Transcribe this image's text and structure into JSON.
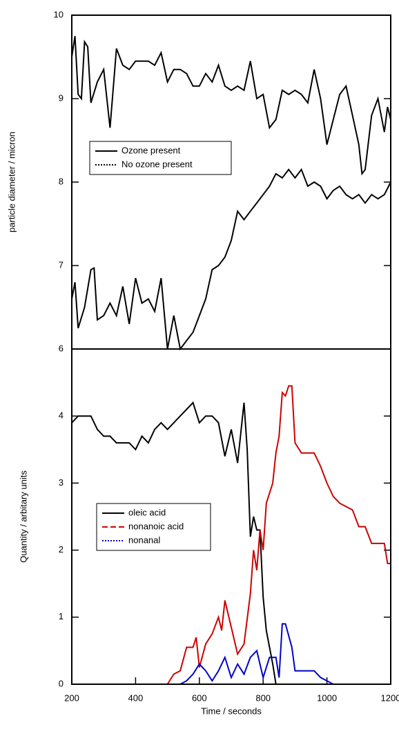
{
  "chart_data": [
    {
      "type": "line",
      "ylabel": "particle diameter / micron",
      "xlim": [
        200,
        1200
      ],
      "ylim": [
        6,
        10
      ],
      "yticks": [
        6,
        7,
        8,
        9,
        10
      ],
      "legend": "upper-left",
      "series": [
        {
          "name": "Ozone present",
          "color": "#000000",
          "legend_dash": "solid",
          "x": [
            200,
            210,
            220,
            230,
            240,
            250,
            260,
            280,
            300,
            320,
            340,
            360,
            380,
            400,
            420,
            440,
            460,
            480,
            500,
            520,
            540,
            560,
            580,
            600,
            620,
            640,
            660,
            680,
            700,
            720,
            740,
            760,
            780,
            800,
            820,
            840,
            860,
            880,
            900,
            920,
            940,
            960,
            980,
            1000,
            1020,
            1040,
            1060,
            1080,
            1100,
            1110,
            1120,
            1140,
            1160,
            1170,
            1180,
            1190,
            1200
          ],
          "values": [
            9.5,
            9.75,
            9.05,
            9.0,
            9.68,
            9.62,
            8.95,
            9.2,
            9.35,
            8.65,
            9.6,
            9.4,
            9.35,
            9.45,
            9.45,
            9.45,
            9.4,
            9.55,
            9.2,
            9.35,
            9.35,
            9.3,
            9.15,
            9.15,
            9.3,
            9.2,
            9.4,
            9.15,
            9.1,
            9.15,
            9.1,
            9.45,
            9.0,
            9.05,
            8.65,
            8.75,
            9.1,
            9.05,
            9.1,
            9.05,
            8.95,
            9.35,
            9.0,
            8.45,
            8.75,
            9.05,
            9.15,
            8.8,
            8.45,
            8.1,
            8.15,
            8.8,
            9.0,
            8.8,
            8.6,
            8.9,
            8.75
          ]
        },
        {
          "name": "No ozone present",
          "color": "#000000",
          "legend_dash": "dotted",
          "x": [
            200,
            210,
            220,
            240,
            260,
            270,
            280,
            300,
            320,
            340,
            360,
            380,
            400,
            420,
            440,
            460,
            480,
            500,
            520,
            540,
            560,
            580,
            600,
            620,
            640,
            660,
            680,
            700,
            720,
            740,
            760,
            780,
            800,
            820,
            840,
            860,
            880,
            900,
            920,
            940,
            960,
            980,
            1000,
            1020,
            1040,
            1060,
            1080,
            1100,
            1120,
            1140,
            1160,
            1180,
            1200
          ],
          "values": [
            6.6,
            6.8,
            6.25,
            6.5,
            6.95,
            6.97,
            6.35,
            6.4,
            6.55,
            6.4,
            6.75,
            6.3,
            6.85,
            6.55,
            6.6,
            6.45,
            6.85,
            6.0,
            6.4,
            6.0,
            6.1,
            6.2,
            6.4,
            6.6,
            6.95,
            7.0,
            7.1,
            7.3,
            7.65,
            7.55,
            7.65,
            7.75,
            7.85,
            7.95,
            8.1,
            8.05,
            8.15,
            8.05,
            8.15,
            7.95,
            8.0,
            7.95,
            7.8,
            7.9,
            7.95,
            7.85,
            7.8,
            7.85,
            7.75,
            7.85,
            7.8,
            7.85,
            8.0
          ]
        }
      ]
    },
    {
      "type": "line",
      "xlabel": "Time / seconds",
      "ylabel": "Quantity / arbitary units",
      "xlim": [
        200,
        1200
      ],
      "xticks": [
        200,
        400,
        600,
        800,
        1000,
        1200
      ],
      "ylim": [
        0,
        5
      ],
      "yticks": [
        0,
        1,
        2,
        3,
        4
      ],
      "legend": "center-left",
      "series": [
        {
          "name": "oleic acid",
          "color": "#000000",
          "legend_dash": "solid",
          "x": [
            200,
            220,
            240,
            260,
            280,
            300,
            320,
            340,
            360,
            380,
            400,
            420,
            440,
            460,
            480,
            500,
            520,
            540,
            560,
            580,
            600,
            620,
            640,
            660,
            680,
            700,
            720,
            740,
            750,
            760,
            770,
            780,
            790,
            800,
            810,
            830,
            840,
            900,
            1000,
            1100,
            1200
          ],
          "values": [
            3.9,
            4.0,
            4.0,
            4.0,
            3.8,
            3.7,
            3.7,
            3.6,
            3.6,
            3.6,
            3.5,
            3.7,
            3.6,
            3.8,
            3.9,
            3.8,
            3.9,
            4.0,
            4.1,
            4.2,
            3.9,
            4.0,
            4.0,
            3.9,
            3.4,
            3.8,
            3.3,
            4.2,
            3.5,
            2.2,
            2.5,
            2.3,
            2.3,
            1.3,
            0.8,
            0.3,
            0,
            0,
            0,
            0,
            0
          ]
        },
        {
          "name": "nonanoic acid",
          "color": "#cc0000",
          "legend_dash": "dashed",
          "x": [
            200,
            300,
            400,
            500,
            520,
            540,
            560,
            580,
            590,
            600,
            620,
            640,
            660,
            670,
            680,
            700,
            720,
            740,
            760,
            770,
            780,
            790,
            800,
            810,
            830,
            840,
            850,
            860,
            870,
            880,
            890,
            900,
            920,
            960,
            980,
            1000,
            1020,
            1040,
            1080,
            1100,
            1120,
            1140,
            1180,
            1190,
            1200
          ],
          "values": [
            0,
            0,
            0,
            0,
            0.15,
            0.2,
            0.55,
            0.55,
            0.7,
            0.25,
            0.6,
            0.75,
            1.0,
            0.8,
            1.25,
            0.85,
            0.45,
            0.6,
            1.35,
            2.0,
            1.7,
            2.3,
            2.0,
            2.7,
            3.0,
            3.45,
            3.7,
            4.35,
            4.3,
            4.45,
            4.45,
            3.6,
            3.45,
            3.45,
            3.25,
            3.0,
            2.8,
            2.7,
            2.6,
            2.35,
            2.35,
            2.1,
            2.1,
            1.8,
            1.8
          ]
        },
        {
          "name": "nonanal",
          "color": "#0000cc",
          "legend_dash": "dotted",
          "x": [
            380,
            540,
            560,
            580,
            600,
            620,
            640,
            660,
            680,
            700,
            720,
            740,
            760,
            780,
            800,
            820,
            840,
            850,
            860,
            870,
            890,
            900,
            960,
            980,
            1000,
            1020,
            1100,
            1180
          ],
          "values": [
            0,
            0,
            0.05,
            0.15,
            0.3,
            0.2,
            0.05,
            0.2,
            0.4,
            0.1,
            0.3,
            0.15,
            0.4,
            0.5,
            0.1,
            0.4,
            0.4,
            0.1,
            0.9,
            0.9,
            0.55,
            0.2,
            0.2,
            0.1,
            0.05,
            0,
            0,
            0
          ]
        }
      ]
    }
  ]
}
